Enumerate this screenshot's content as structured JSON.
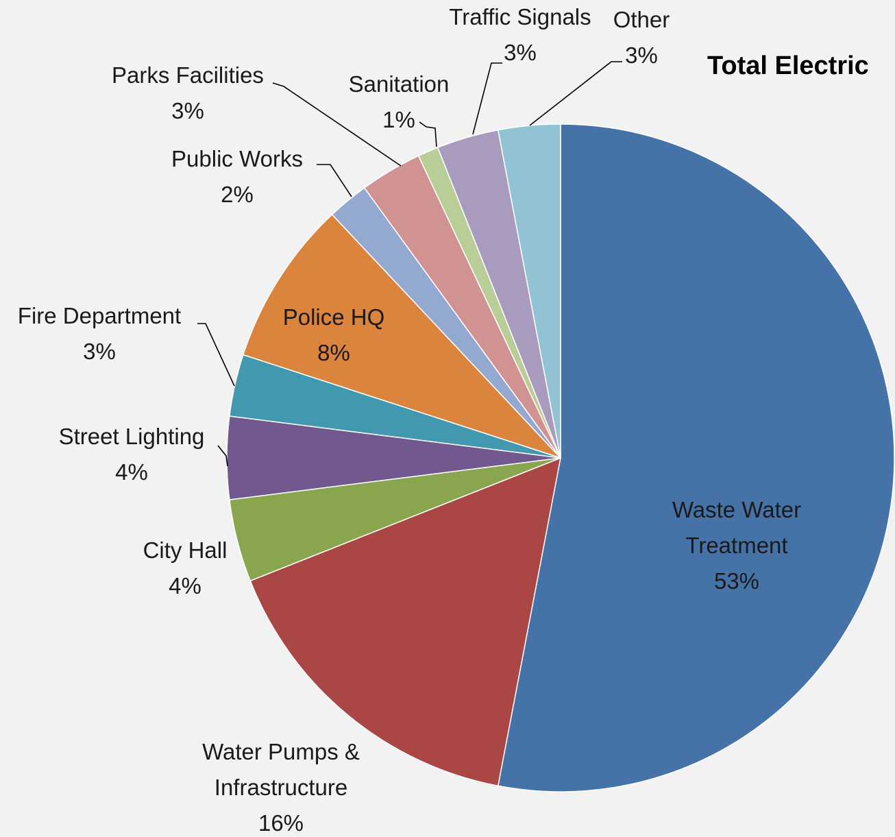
{
  "chart_data": {
    "type": "pie",
    "title": "Total Electric",
    "start_angle_deg": 0,
    "direction": "clockwise",
    "slices": [
      {
        "name": "Waste Water Treatment",
        "label_lines": [
          "Waste Water",
          "Treatment"
        ],
        "value": 53,
        "pct_label": "53%",
        "color": "#4572a7"
      },
      {
        "name": "Water Pumps & Infrastructure",
        "label_lines": [
          "Water Pumps &",
          "Infrastructure"
        ],
        "value": 16,
        "pct_label": "16%",
        "color": "#aa4643"
      },
      {
        "name": "City Hall",
        "label_lines": [
          "City Hall"
        ],
        "value": 4,
        "pct_label": "4%",
        "color": "#89a54e"
      },
      {
        "name": "Street Lighting",
        "label_lines": [
          "Street Lighting"
        ],
        "value": 4,
        "pct_label": "4%",
        "color": "#71588f"
      },
      {
        "name": "Fire Department",
        "label_lines": [
          "Fire Department"
        ],
        "value": 3,
        "pct_label": "3%",
        "color": "#4198af"
      },
      {
        "name": "Police HQ",
        "label_lines": [
          "Police HQ"
        ],
        "value": 8,
        "pct_label": "8%",
        "color": "#db843d"
      },
      {
        "name": "Public Works",
        "label_lines": [
          "Public Works"
        ],
        "value": 2,
        "pct_label": "2%",
        "color": "#93a9cf"
      },
      {
        "name": "Parks Facilities",
        "label_lines": [
          "Parks Facilities"
        ],
        "value": 3,
        "pct_label": "3%",
        "color": "#d19392"
      },
      {
        "name": "Sanitation",
        "label_lines": [
          "Sanitation"
        ],
        "value": 1,
        "pct_label": "1%",
        "color": "#b9cd96"
      },
      {
        "name": "Traffic Signals",
        "label_lines": [
          "Traffic Signals"
        ],
        "value": 3,
        "pct_label": "3%",
        "color": "#a99bbd"
      },
      {
        "name": "Other",
        "label_lines": [
          "Other"
        ],
        "value": 3,
        "pct_label": "3%",
        "color": "#92c3d4"
      }
    ]
  }
}
